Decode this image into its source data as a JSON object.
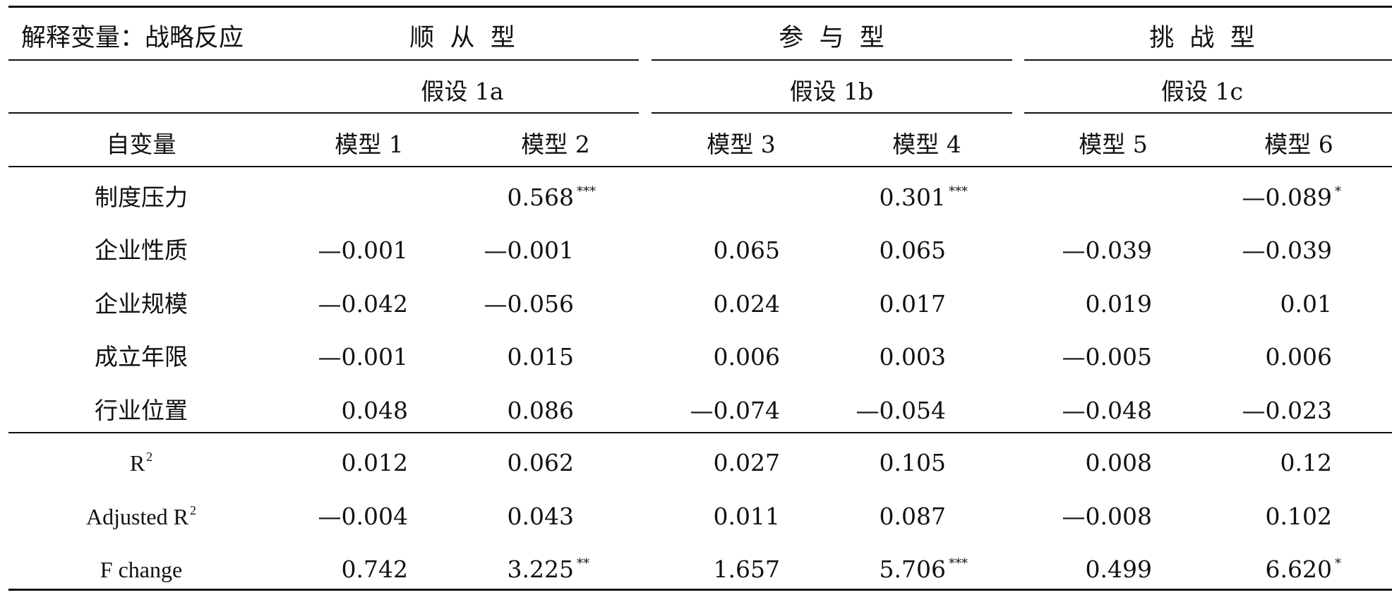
{
  "header": {
    "row1": {
      "left_label": "解释变量：战略反应",
      "groups": [
        "顺  从  型",
        "参  与  型",
        "挑  战  型"
      ]
    },
    "row2": {
      "hypotheses": [
        "假设 1a",
        "假设 1b",
        "假设 1c"
      ]
    },
    "row3": {
      "left_label": "自变量",
      "models": [
        "模型 1",
        "模型 2",
        "模型 3",
        "模型 4",
        "模型 5",
        "模型 6"
      ]
    }
  },
  "body_rows": [
    {
      "label": "制度压力",
      "values": [
        "",
        "0.568",
        "",
        "0.301",
        "",
        "—0.089"
      ],
      "sig": [
        "",
        "***",
        "",
        "***",
        "",
        "*"
      ]
    },
    {
      "label": "企业性质",
      "values": [
        "—0.001",
        "—0.001",
        "0.065",
        "0.065",
        "—0.039",
        "—0.039"
      ],
      "sig": [
        "",
        "",
        "",
        "",
        "",
        ""
      ]
    },
    {
      "label": "企业规模",
      "values": [
        "—0.042",
        "—0.056",
        "0.024",
        "0.017",
        "0.019",
        "0.01"
      ],
      "sig": [
        "",
        "",
        "",
        "",
        "",
        ""
      ]
    },
    {
      "label": "成立年限",
      "values": [
        "—0.001",
        "0.015",
        "0.006",
        "0.003",
        "—0.005",
        "0.006"
      ],
      "sig": [
        "",
        "",
        "",
        "",
        "",
        ""
      ]
    },
    {
      "label": "行业位置",
      "values": [
        "0.048",
        "0.086",
        "—0.074",
        "—0.054",
        "—0.048",
        "—0.023"
      ],
      "sig": [
        "",
        "",
        "",
        "",
        "",
        ""
      ]
    }
  ],
  "stats_rows": [
    {
      "label": "R",
      "label_sup": "2",
      "values": [
        "0.012",
        "0.062",
        "0.027",
        "0.105",
        "0.008",
        "0.12"
      ],
      "sig": [
        "",
        "",
        "",
        "",
        "",
        ""
      ]
    },
    {
      "label": "Adjusted R",
      "label_sup": "2",
      "values": [
        "—0.004",
        "0.043",
        "0.011",
        "0.087",
        "—0.008",
        "0.102"
      ],
      "sig": [
        "",
        "",
        "",
        "",
        "",
        ""
      ]
    },
    {
      "label": "F change",
      "label_sup": "",
      "values": [
        "0.742",
        "3.225",
        "1.657",
        "5.706",
        "0.499",
        "6.620"
      ],
      "sig": [
        "",
        "**",
        "",
        "***",
        "",
        "*"
      ]
    }
  ]
}
